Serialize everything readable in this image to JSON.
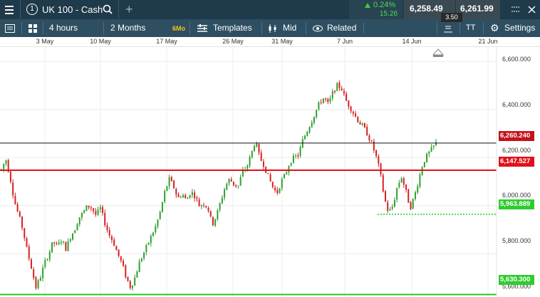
{
  "header": {
    "instrument_number": "1",
    "instrument_name": "UK 100 - Cash",
    "change_pct": "0.24%",
    "change_pts": "15.26",
    "sell_price": "6,258.49",
    "buy_price": "6,261.99",
    "spread": "3.50"
  },
  "toolbar": {
    "interval": "4 hours",
    "range": "2 Months",
    "range_badge": "6Mo",
    "templates": "Templates",
    "price_type": "Mid",
    "related": "Related",
    "text_tool": "TT",
    "settings": "Settings"
  },
  "x_axis": {
    "labels": [
      "3 May",
      "10 May",
      "17 May",
      "26 May",
      "31 May",
      "7 Jun",
      "14 Jun",
      "21 Jun"
    ]
  },
  "y_axis": {
    "labels": [
      "6,600.000",
      "6,400.000",
      "6,200.000",
      "6,000.000",
      "5,800.000",
      "5,600.000"
    ]
  },
  "price_lines": {
    "current": "6,260.240",
    "red_level": "6,147.527",
    "green_dotted": "5,963.889",
    "green_solid": "5,630.300"
  },
  "colors": {
    "topbar_bg": "#1f3a4a",
    "toolbar_bg": "#2e4f61",
    "up_candle": "#2ea02e",
    "down_candle": "#d62020",
    "red_line": "#e0101a",
    "green_line": "#22cc22",
    "current_tag": "#c4121a",
    "badge": "#f5c518"
  },
  "chart_data": {
    "type": "candlestick",
    "x_labels": [
      "3 May",
      "10 May",
      "17 May",
      "26 May",
      "31 May",
      "7 Jun",
      "14 Jun",
      "21 Jun"
    ],
    "ylim": [
      5620,
      6660
    ],
    "y_ticks": [
      6600,
      6400,
      6200,
      6000,
      5800,
      5600
    ],
    "close_path": [
      6150,
      6195,
      6120,
      6020,
      5960,
      5900,
      5810,
      5740,
      5660,
      5700,
      5760,
      5800,
      5850,
      5830,
      5860,
      5820,
      5870,
      5900,
      5950,
      5970,
      6000,
      5990,
      5960,
      5990,
      5930,
      5880,
      5850,
      5800,
      5760,
      5700,
      5660,
      5700,
      5760,
      5800,
      5840,
      5880,
      5920,
      5980,
      6060,
      6110,
      6080,
      6030,
      6050,
      6020,
      6060,
      6040,
      6000,
      6010,
      5990,
      5920,
      5960,
      6020,
      6080,
      6110,
      6090,
      6080,
      6140,
      6160,
      6210,
      6270,
      6200,
      6170,
      6120,
      6080,
      6050,
      6100,
      6130,
      6180,
      6200,
      6210,
      6270,
      6310,
      6350,
      6390,
      6430,
      6450,
      6420,
      6470,
      6500,
      6490,
      6440,
      6410,
      6380,
      6350,
      6330,
      6300,
      6260,
      6210,
      6140,
      6030,
      5970,
      6000,
      6080,
      6120,
      6060,
      5990,
      6040,
      6110,
      6180,
      6210,
      6235,
      6260
    ],
    "overlays": [
      {
        "name": "current_price",
        "value": 6260.24
      },
      {
        "name": "red_level",
        "value": 6147.527
      },
      {
        "name": "green_dotted",
        "value": 5963.889
      },
      {
        "name": "green_solid",
        "value": 5630.3
      }
    ]
  }
}
